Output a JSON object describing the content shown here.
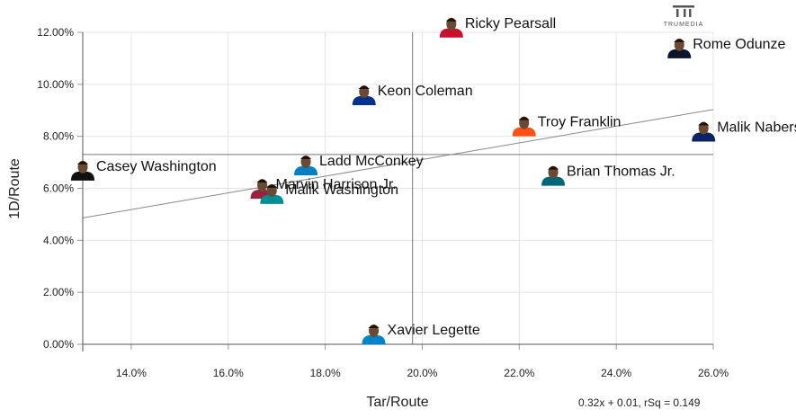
{
  "brand": {
    "logo_text": "TRUMEDIA"
  },
  "chart_data": {
    "type": "scatter",
    "xlabel": "Tar/Route",
    "ylabel": "1D/Route",
    "xlim": [
      13.0,
      26.0
    ],
    "ylim": [
      0.0,
      12.0
    ],
    "x_ticks": [
      "14.0%",
      "16.0%",
      "18.0%",
      "20.0%",
      "22.0%",
      "24.0%",
      "26.0%"
    ],
    "y_ticks": [
      "0.00%",
      "2.00%",
      "4.00%",
      "6.00%",
      "8.00%",
      "10.00%",
      "12.00%"
    ],
    "grid": true,
    "reference_lines": {
      "x_mean": 19.8,
      "y_mean": 7.3
    },
    "trendline": {
      "label": "0.32x + 0.01, rSq = 0.149",
      "slope": 0.32,
      "intercept": 0.01,
      "r_squared": 0.149
    },
    "points": [
      {
        "name": "Ricky Pearsall",
        "x": 20.6,
        "y": 11.8,
        "color": "#c8102e"
      },
      {
        "name": "Rome Odunze",
        "x": 25.3,
        "y": 11.0,
        "color": "#0b162a"
      },
      {
        "name": "Keon Coleman",
        "x": 18.8,
        "y": 9.2,
        "color": "#00338d"
      },
      {
        "name": "Troy Franklin",
        "x": 22.1,
        "y": 8.0,
        "color": "#fb4f14"
      },
      {
        "name": "Malik Nabers",
        "x": 25.8,
        "y": 7.8,
        "color": "#0b2265"
      },
      {
        "name": "Casey Washington",
        "x": 13.0,
        "y": 6.3,
        "color": "#111111"
      },
      {
        "name": "Ladd McConkey",
        "x": 17.6,
        "y": 6.5,
        "color": "#0080c6"
      },
      {
        "name": "Brian Thomas Jr.",
        "x": 22.7,
        "y": 6.1,
        "color": "#006778"
      },
      {
        "name": "Marvin Harrison Jr.",
        "x": 16.7,
        "y": 5.6,
        "color": "#97233f"
      },
      {
        "name": "Malik Washington",
        "x": 16.9,
        "y": 5.4,
        "color": "#008e97"
      },
      {
        "name": "Xavier Legette",
        "x": 19.0,
        "y": 0.0,
        "color": "#0085ca"
      }
    ]
  }
}
